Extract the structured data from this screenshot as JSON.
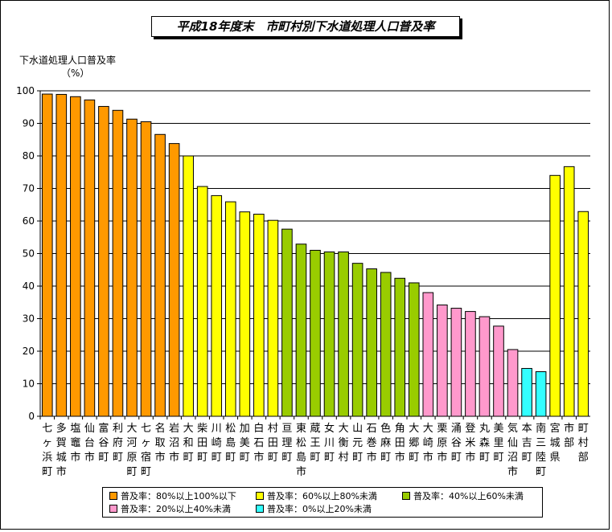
{
  "chart_data": {
    "type": "bar",
    "title": "平成18年度末　市町村別下水道処理人口普及率",
    "ylabel_line1": "下水道処理人口普及率",
    "ylabel_line2": "（%）",
    "ylim": [
      0,
      100
    ],
    "yticks": [
      0,
      10,
      20,
      30,
      40,
      50,
      60,
      70,
      80,
      90,
      100
    ],
    "grid": true,
    "categories": [
      "七ヶ浜町",
      "多賀城市",
      "塩竈市",
      "仙台市",
      "富谷町",
      "利府町",
      "大河原町",
      "七ヶ宿町",
      "名取市",
      "岩沼市",
      "大和町",
      "柴田町",
      "川崎町",
      "松島町",
      "加美町",
      "白石市",
      "村田町",
      "亘理町",
      "東松島市",
      "蔵王町",
      "女川町",
      "大衡村",
      "山元町",
      "石巻市",
      "色麻町",
      "角田市",
      "大郷町",
      "大崎市",
      "栗原市",
      "涌谷町",
      "登米市",
      "丸森町",
      "美里町",
      "気仙沼市",
      "本吉町",
      "南三陸町",
      "宮城県",
      "市部",
      "町村部"
    ],
    "category_labels": [
      [
        "七",
        "ヶ",
        "浜",
        "町"
      ],
      [
        "多",
        "賀",
        "城",
        "市"
      ],
      [
        "塩",
        "竈",
        "市"
      ],
      [
        "仙",
        "台",
        "市"
      ],
      [
        "富",
        "谷",
        "町"
      ],
      [
        "利",
        "府",
        "町"
      ],
      [
        "大",
        "河",
        "原",
        "町"
      ],
      [
        "七",
        "ヶ",
        "宿",
        "町"
      ],
      [
        "名",
        "取",
        "市"
      ],
      [
        "岩",
        "沼",
        "市"
      ],
      [
        "大",
        "和",
        "町"
      ],
      [
        "柴",
        "田",
        "町"
      ],
      [
        "川",
        "崎",
        "町"
      ],
      [
        "松",
        "島",
        "町"
      ],
      [
        "加",
        "美",
        "町"
      ],
      [
        "白",
        "石",
        "市"
      ],
      [
        "村",
        "田",
        "町"
      ],
      [
        "亘",
        "理",
        "町"
      ],
      [
        "東",
        "松",
        "島",
        "市"
      ],
      [
        "蔵",
        "王",
        "町"
      ],
      [
        "女",
        "川",
        "町"
      ],
      [
        "大",
        "衡",
        "村"
      ],
      [
        "山",
        "元",
        "町"
      ],
      [
        "石",
        "巻",
        "市"
      ],
      [
        "色",
        "麻",
        "町"
      ],
      [
        "角",
        "田",
        "市"
      ],
      [
        "大",
        "郷",
        "町"
      ],
      [
        "大",
        "崎",
        "市"
      ],
      [
        "栗",
        "原",
        "市"
      ],
      [
        "涌",
        "谷",
        "町"
      ],
      [
        "登",
        "米",
        "市"
      ],
      [
        "丸",
        "森",
        "町"
      ],
      [
        "美",
        "里",
        "町"
      ],
      [
        "気",
        "仙",
        "沼",
        "市"
      ],
      [
        "本",
        "吉",
        "町"
      ],
      [
        "南",
        "三",
        "陸",
        "町"
      ],
      [
        "宮",
        "城",
        "県"
      ],
      [
        "市",
        "部"
      ],
      [
        "町",
        "村",
        "部"
      ]
    ],
    "values": [
      99.0,
      98.9,
      98.2,
      97.2,
      95.2,
      94.0,
      91.3,
      90.5,
      86.6,
      83.8,
      80.0,
      70.6,
      67.8,
      65.9,
      62.8,
      62.1,
      60.2,
      57.5,
      52.9,
      51.0,
      50.5,
      50.5,
      47.0,
      45.3,
      44.2,
      42.4,
      41.0,
      38.0,
      34.2,
      33.2,
      32.2,
      30.6,
      27.7,
      20.5,
      14.7,
      13.7,
      74.0,
      76.7,
      62.9
    ],
    "value_classes": [
      0,
      0,
      0,
      0,
      0,
      0,
      0,
      0,
      0,
      0,
      1,
      1,
      1,
      1,
      1,
      1,
      1,
      2,
      2,
      2,
      2,
      2,
      2,
      2,
      2,
      2,
      2,
      3,
      3,
      3,
      3,
      3,
      3,
      3,
      4,
      4,
      1,
      1,
      1
    ],
    "classes": [
      {
        "label": "普及率：80%以上100%以下",
        "color": "#ff9900"
      },
      {
        "label": "普及率：60%以上80%未満",
        "color": "#ffff00"
      },
      {
        "label": "普及率：40%以上60%未満",
        "color": "#99cc00"
      },
      {
        "label": "普及率：20%以上40%未満",
        "color": "#ff99cc"
      },
      {
        "label": "普及率：0%以上20%未満",
        "color": "#33ffff"
      }
    ],
    "legend_position": "bottom"
  }
}
